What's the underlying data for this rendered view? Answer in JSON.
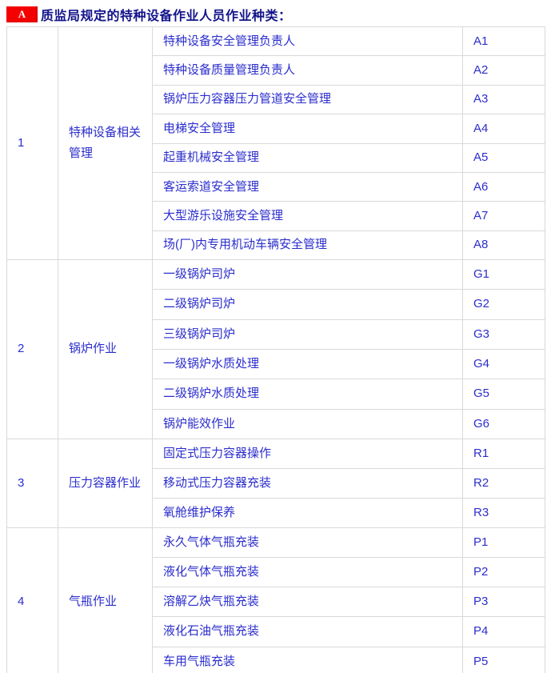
{
  "header": {
    "badge": "A",
    "title": "质监局规定的特种设备作业人员作业种类："
  },
  "colors": {
    "badge_bg": "#f50000",
    "badge_text": "#ffffff",
    "title_text": "#14148b",
    "cell_text": "#2b2dcc",
    "border": "#d9d9d9",
    "page_bg": "#ffffff"
  },
  "table": {
    "sections": [
      {
        "num": "1",
        "category": "特种设备相关管理",
        "rows": [
          {
            "job": "特种设备安全管理负责人",
            "code": "A1"
          },
          {
            "job": "特种设备质量管理负责人",
            "code": "A2"
          },
          {
            "job": "锅炉压力容器压力管道安全管理",
            "code": "A3"
          },
          {
            "job": "电梯安全管理",
            "code": "A4"
          },
          {
            "job": "起重机械安全管理",
            "code": "A5"
          },
          {
            "job": "客运索道安全管理",
            "code": "A6"
          },
          {
            "job": "大型游乐设施安全管理",
            "code": "A7"
          },
          {
            "job": "场(厂)内专用机动车辆安全管理",
            "code": "A8"
          }
        ]
      },
      {
        "num": "2",
        "category": "锅炉作业",
        "rows": [
          {
            "job": "一级锅炉司炉",
            "code": "G1"
          },
          {
            "job": "二级锅炉司炉",
            "code": "G2"
          },
          {
            "job": "三级锅炉司炉",
            "code": "G3"
          },
          {
            "job": "一级锅炉水质处理",
            "code": "G4"
          },
          {
            "job": "二级锅炉水质处理",
            "code": "G5"
          },
          {
            "job": "锅炉能效作业",
            "code": "G6"
          }
        ]
      },
      {
        "num": "3",
        "category": "压力容器作业",
        "rows": [
          {
            "job": "固定式压力容器操作",
            "code": "R1"
          },
          {
            "job": "移动式压力容器充装",
            "code": "R2"
          },
          {
            "job": "氧舱维护保养",
            "code": "R3"
          }
        ]
      },
      {
        "num": "4",
        "category": "气瓶作业",
        "rows": [
          {
            "job": "永久气体气瓶充装",
            "code": "P1"
          },
          {
            "job": "液化气体气瓶充装",
            "code": "P2"
          },
          {
            "job": "溶解乙炔气瓶充装",
            "code": "P3"
          },
          {
            "job": "液化石油气瓶充装",
            "code": "P4"
          },
          {
            "job": "车用气瓶充装",
            "code": "P5"
          }
        ]
      }
    ]
  }
}
